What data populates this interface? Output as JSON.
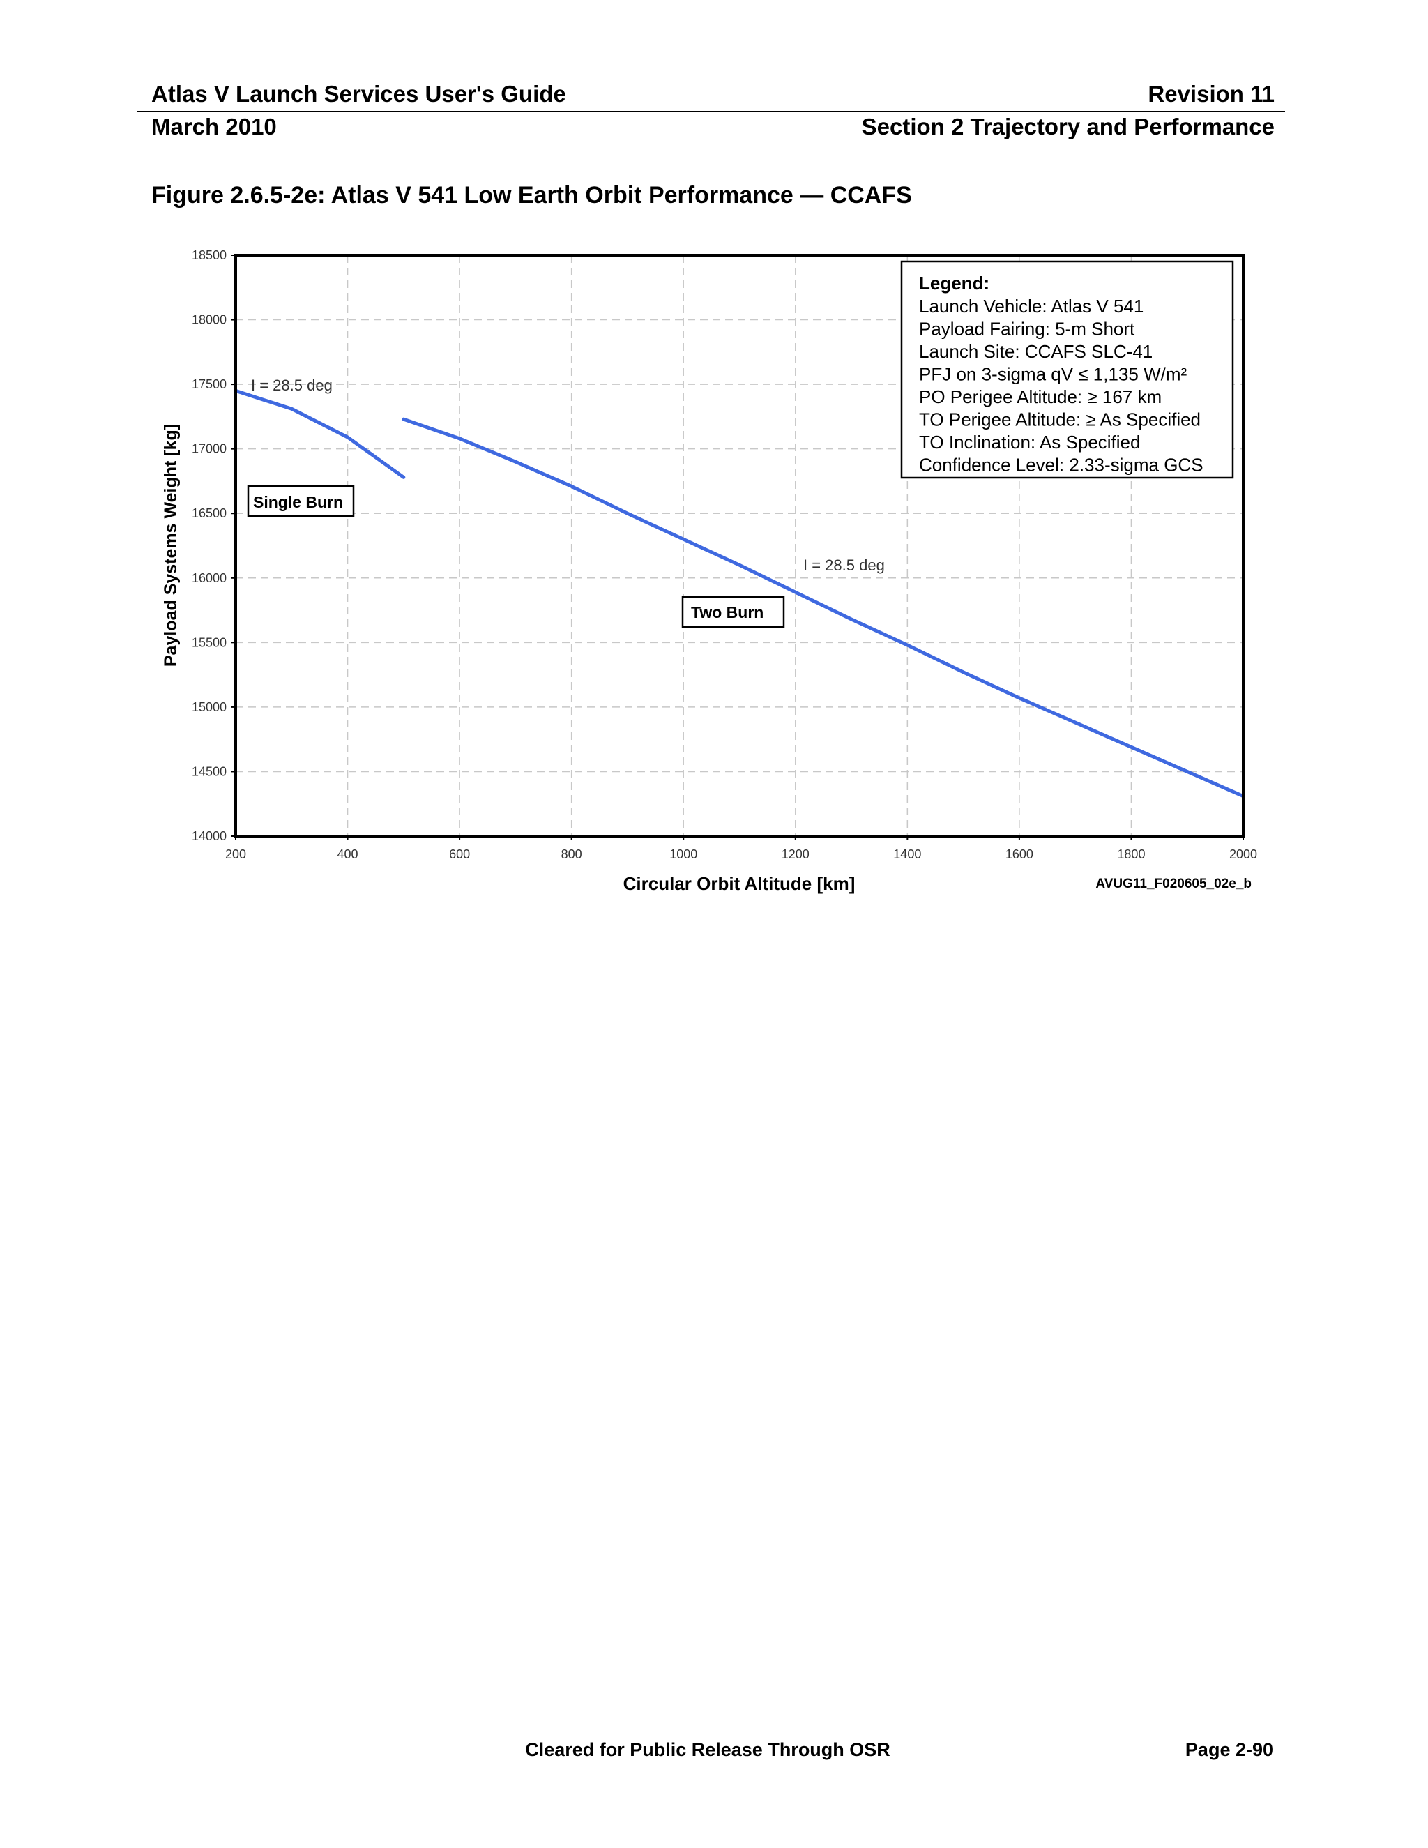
{
  "header": {
    "title": "Atlas V Launch Services User's Guide",
    "revision": "Revision 11",
    "date": "March 2010",
    "section": "Section 2 Trajectory and Performance"
  },
  "figure": {
    "title": "Figure 2.6.5-2e: Atlas V 541 Low Earth Orbit Performance — CCAFS",
    "ref_id": "AVUG11_F020605_02e_b"
  },
  "chart_data": {
    "type": "line",
    "title": "Figure 2.6.5-2e: Atlas V 541 Low Earth Orbit Performance — CCAFS",
    "xlabel": "Circular Orbit Altitude [km]",
    "ylabel": "Payload Systems Weight [kg]",
    "xlim": [
      200,
      2000
    ],
    "ylim": [
      14000,
      18500
    ],
    "xticks": [
      200,
      400,
      600,
      800,
      1000,
      1200,
      1400,
      1600,
      1800,
      2000
    ],
    "yticks": [
      14000,
      14500,
      15000,
      15500,
      16000,
      16500,
      17000,
      17500,
      18000,
      18500
    ],
    "grid": true,
    "line_color": "#3f69e0",
    "series": [
      {
        "name": "Single Burn",
        "label": "I = 28.5 deg",
        "x": [
          200,
          300,
          400,
          500
        ],
        "y": [
          17450,
          17310,
          17090,
          16780
        ]
      },
      {
        "name": "Two Burn",
        "label": "I = 28.5 deg",
        "x": [
          500,
          600,
          700,
          800,
          900,
          1000,
          1100,
          1200,
          1300,
          1400,
          1500,
          1600,
          1700,
          1800,
          1900,
          2000
        ],
        "y": [
          17230,
          17080,
          16900,
          16710,
          16500,
          16300,
          16100,
          15890,
          15680,
          15480,
          15270,
          15070,
          14880,
          14690,
          14500,
          14310
        ]
      }
    ],
    "annotations": {
      "single_burn_label": "Single Burn",
      "two_burn_label": "Two Burn",
      "single_burn_inclination": "I = 28.5 deg",
      "two_burn_inclination": "I = 28.5 deg"
    },
    "legend": {
      "position": "top-right",
      "title": "Legend:",
      "lines": [
        "Launch Vehicle: Atlas V 541",
        "Payload Fairing: 5-m Short",
        "Launch Site: CCAFS SLC-41",
        "PFJ on 3-sigma qV ≤ 1,135 W/m²",
        "PO Perigee Altitude: ≥ 167 km",
        "TO Perigee Altitude: ≥ As Specified",
        "TO Inclination:  As Specified",
        "Confidence Level: 2.33-sigma GCS"
      ]
    }
  },
  "footer": {
    "release": "Cleared for Public Release Through OSR",
    "page": "Page 2-90"
  }
}
